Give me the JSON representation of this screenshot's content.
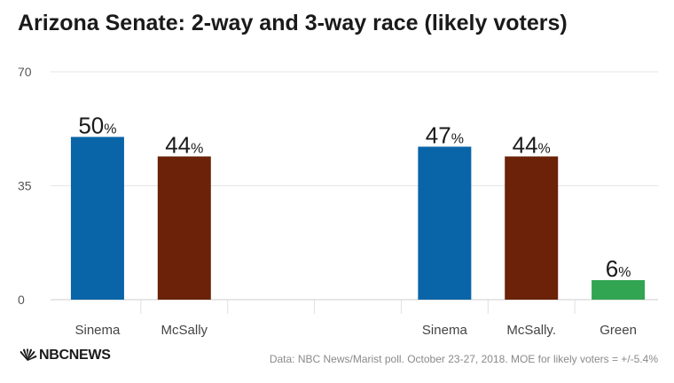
{
  "title": "Arizona Senate: 2-way and 3-way race (likely voters)",
  "chart_data": {
    "type": "bar",
    "ylim": [
      0,
      70
    ],
    "yticks": [
      0,
      35,
      70
    ],
    "grid": true,
    "value_suffix": "%",
    "categories": [
      "Sinema",
      "McSally",
      "",
      "",
      "Sinema",
      "McSally.",
      "Green"
    ],
    "values": [
      50,
      44,
      null,
      null,
      47,
      44,
      6
    ],
    "colors": [
      "#0a64a8",
      "#6b2208",
      null,
      null,
      "#0a64a8",
      "#6b2208",
      "#32a552"
    ]
  },
  "footer": {
    "source": "Data: NBC News/Marist poll. October 23-27, 2018. MOE for likely voters = +/-5.4%",
    "logo_text": "NBCNEWS"
  }
}
